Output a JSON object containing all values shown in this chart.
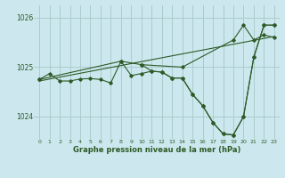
{
  "title": "Graphe pression niveau de la mer (hPa)",
  "background_color": "#cce8ee",
  "line_color": "#2d5a27",
  "grid_color": "#aacccc",
  "ylim": [
    1023.55,
    1026.25
  ],
  "xlim": [
    -0.5,
    23.5
  ],
  "yticks": [
    1024,
    1025,
    1026
  ],
  "xticks": [
    0,
    1,
    2,
    3,
    4,
    5,
    6,
    7,
    8,
    9,
    10,
    11,
    12,
    13,
    14,
    15,
    16,
    17,
    18,
    19,
    20,
    21,
    22,
    23
  ],
  "series_main": {
    "x": [
      0,
      1,
      2,
      3,
      4,
      5,
      6,
      7,
      8,
      9,
      10,
      11,
      12,
      13,
      14,
      15,
      16,
      17,
      18,
      19,
      20,
      21,
      22,
      23
    ],
    "y": [
      1024.75,
      1024.87,
      1024.72,
      1024.72,
      1024.76,
      1024.77,
      1024.75,
      1024.68,
      1025.12,
      1024.83,
      1024.87,
      1024.92,
      1024.9,
      1024.78,
      1024.78,
      1024.45,
      1024.22,
      1023.88,
      1023.65,
      1023.63,
      1024.0,
      1025.2,
      1025.85,
      1025.85
    ]
  },
  "series_envelope_top": {
    "x": [
      0,
      8,
      10,
      14,
      19,
      20,
      21,
      22,
      23
    ],
    "y": [
      1024.75,
      1025.12,
      1025.05,
      1025.0,
      1025.55,
      1025.85,
      1025.55,
      1025.65,
      1025.6
    ]
  },
  "series_envelope_bottom": {
    "x": [
      0,
      7,
      10,
      14,
      15,
      16,
      19,
      20,
      21,
      22,
      23
    ],
    "y": [
      1024.75,
      1024.68,
      1024.87,
      1024.78,
      1024.45,
      1024.22,
      1025.2,
      1025.85,
      1025.55,
      1025.65,
      1025.6
    ]
  },
  "trend_line": {
    "x": [
      0,
      23
    ],
    "y": [
      1024.72,
      1025.62
    ]
  },
  "detailed_line": {
    "x": [
      0,
      1,
      2,
      3,
      4,
      5,
      6,
      7,
      8,
      9,
      10,
      11,
      12,
      13,
      14,
      15,
      16,
      17,
      18,
      19,
      20,
      21,
      22,
      23
    ],
    "y": [
      1024.75,
      1024.87,
      1024.72,
      1024.72,
      1024.76,
      1024.77,
      1024.75,
      1024.68,
      1025.12,
      1024.83,
      1024.87,
      1024.92,
      1024.9,
      1024.78,
      1024.78,
      1024.45,
      1024.22,
      1023.88,
      1023.65,
      1023.63,
      1024.0,
      1025.2,
      1025.85,
      1025.85
    ]
  },
  "drop_line": {
    "x": [
      10,
      11,
      12,
      13,
      14,
      15,
      16,
      17,
      18,
      19,
      20,
      21,
      22,
      23
    ],
    "y": [
      1025.05,
      1024.92,
      1024.9,
      1024.78,
      1024.78,
      1024.45,
      1024.22,
      1023.88,
      1023.65,
      1023.63,
      1024.0,
      1025.2,
      1025.85,
      1025.85
    ]
  }
}
